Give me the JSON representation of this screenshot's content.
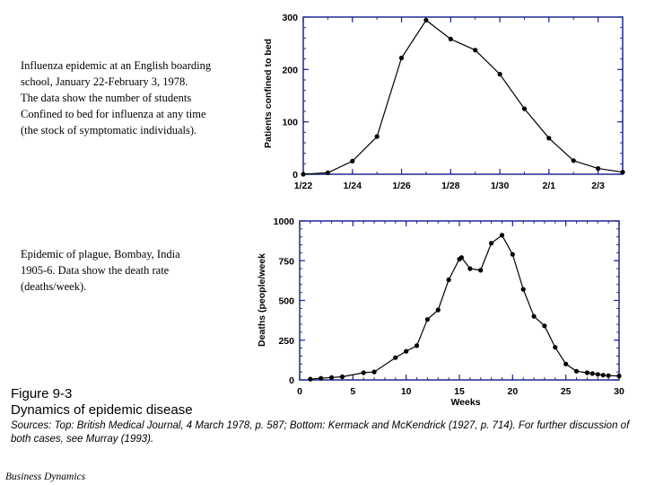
{
  "descriptions": {
    "top": "Influenza epidemic at an English boarding\nschool, January 22-February 3, 1978.\nThe data show the number of students\nConfined to bed for influenza at any time\n(the stock of symptomatic individuals).",
    "bottom": "Epidemic of plague, Bombay, India\n1905-6.  Data show the death rate\n(deaths/week)."
  },
  "figure": {
    "title": "Figure 9-3\nDynamics of epidemic disease",
    "sources": "Sources:  Top: British Medical Journal, 4 March 1978, p. 587;  Bottom:  Kermack and McKendrick (1927, p. 714).  For further discussion of both cases, see Murray (1993).",
    "footer": "Business Dynamics"
  },
  "colors": {
    "frame": "#1f2a8f",
    "line": "#000000"
  },
  "chart_data": [
    {
      "type": "line",
      "ylabel": "Patients confined to bed",
      "xlabel": "",
      "x_tick_labels": [
        "1/22",
        "1/24",
        "1/26",
        "1/28",
        "1/30",
        "2/1",
        "2/3"
      ],
      "x_tick_positions": [
        0,
        2,
        4,
        6,
        8,
        10,
        12
      ],
      "y_tick_labels": [
        "0",
        "100",
        "200",
        "300"
      ],
      "xlim": [
        0,
        13
      ],
      "ylim": [
        0,
        300
      ],
      "grid": false,
      "series": [
        {
          "x": [
            0,
            1,
            2,
            3,
            4,
            5,
            6,
            7,
            8,
            9,
            10,
            11,
            12,
            13
          ],
          "y": [
            0,
            3,
            25,
            72,
            222,
            294,
            258,
            237,
            191,
            125,
            69,
            26,
            11,
            4
          ]
        }
      ]
    },
    {
      "type": "line",
      "ylabel": "Deaths  (people/week",
      "xlabel": "Weeks",
      "x_tick_labels": [
        "0",
        "5",
        "10",
        "15",
        "20",
        "25",
        "30"
      ],
      "y_tick_labels": [
        "0",
        "250",
        "500",
        "750",
        "1000"
      ],
      "xlim": [
        0,
        30
      ],
      "ylim": [
        0,
        1000
      ],
      "grid": false,
      "series": [
        {
          "x": [
            1,
            2,
            3,
            4,
            6,
            7,
            9,
            10,
            11,
            12,
            13,
            14,
            15,
            15.2,
            16,
            17,
            18,
            19,
            20,
            21,
            22,
            23,
            24,
            25,
            26,
            27,
            27.5,
            28,
            28.5,
            29,
            30
          ],
          "y": [
            5,
            10,
            15,
            20,
            45,
            50,
            140,
            180,
            215,
            380,
            440,
            630,
            760,
            770,
            700,
            690,
            860,
            910,
            790,
            570,
            400,
            340,
            205,
            100,
            55,
            45,
            40,
            35,
            30,
            27,
            25
          ]
        }
      ]
    }
  ]
}
